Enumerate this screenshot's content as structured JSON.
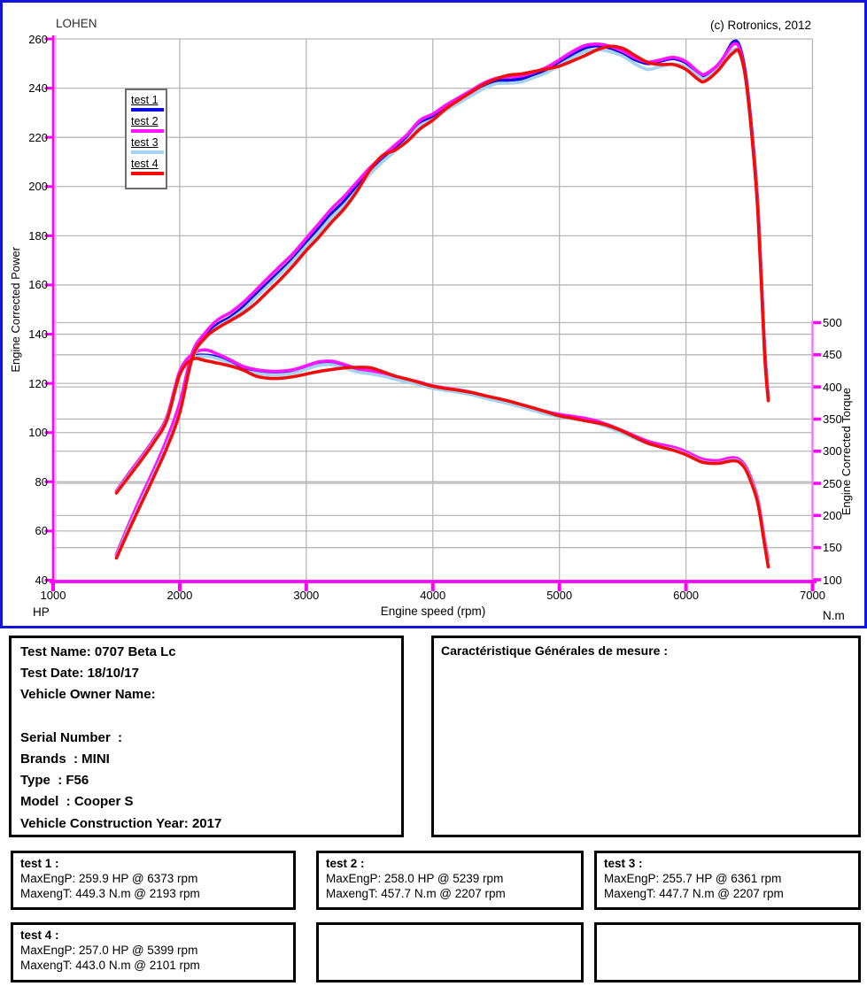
{
  "header": {
    "title": "LOHEN",
    "copyright": "(c) Rotronics, 2012"
  },
  "chart_data": {
    "type": "line",
    "x_label": "Engine speed (rpm)",
    "y_left_label": "Engine Corrected Power",
    "y_left_unit": "HP",
    "y_right_label": "Engine Corrected Torque",
    "y_right_unit": "N.m",
    "grid": true,
    "legend_position": "upper-left",
    "axes": {
      "x": {
        "min": 1000,
        "max": 7000,
        "step": 1000
      },
      "power": {
        "min": 40,
        "max": 260,
        "step": 20
      },
      "torque": {
        "min": 100,
        "max": 500,
        "step": 50
      }
    },
    "rpm": [
      1500,
      1600,
      1700,
      1800,
      1900,
      2000,
      2100,
      2200,
      2300,
      2400,
      2500,
      2600,
      2700,
      2800,
      2900,
      3000,
      3100,
      3200,
      3300,
      3400,
      3500,
      3600,
      3700,
      3800,
      3900,
      4000,
      4100,
      4200,
      4300,
      4400,
      4500,
      4600,
      4700,
      4800,
      4900,
      5000,
      5100,
      5200,
      5300,
      5400,
      5500,
      5600,
      5700,
      5800,
      5900,
      6000,
      6100,
      6150,
      6250,
      6320,
      6373,
      6420,
      6470,
      6520,
      6570,
      6620,
      6650
    ],
    "series": [
      {
        "name": "test 1",
        "color": "#0b0bdd",
        "max_power": "259.9 HP @ 6373 rpm",
        "max_torque": "449.3 N.m @ 2193 rpm",
        "power": [
          50,
          62,
          73,
          84,
          96,
          110,
          131,
          139,
          144,
          147,
          151,
          156,
          161,
          166,
          171,
          177,
          183,
          189,
          194,
          200,
          206,
          211,
          215.5,
          220,
          226,
          228.5,
          232,
          235,
          238,
          241,
          243,
          243.2,
          243.8,
          245.5,
          247.5,
          250.5,
          253.5,
          256.3,
          257.2,
          256.3,
          254.3,
          251.5,
          250,
          251,
          252,
          250.3,
          246,
          245.2,
          249,
          254.5,
          258.8,
          257.5,
          246,
          223,
          191,
          136,
          114.5
        ],
        "torque": [
          237,
          264,
          290,
          318,
          352,
          420,
          446,
          449.3,
          446,
          438,
          429,
          424,
          421.5,
          421.5,
          424,
          430,
          436,
          437,
          432,
          426,
          423,
          419.5,
          414.5,
          410,
          405.5,
          400,
          397,
          394,
          390.5,
          385.5,
          381,
          376.5,
          371,
          365.5,
          360,
          356,
          353,
          350,
          345.5,
          338.5,
          330.5,
          322,
          314,
          309,
          305,
          298,
          288.5,
          285.5,
          284,
          287,
          289,
          286.5,
          276,
          254,
          222,
          162,
          131
        ]
      },
      {
        "name": "test 2",
        "color": "#ff14ff",
        "max_power": "258.0 HP @ 5239 rpm",
        "max_torque": "457.7 N.m @ 2207 rpm",
        "power": [
          50.5,
          63,
          74.5,
          85.5,
          97.5,
          112,
          132.5,
          140.5,
          145.8,
          148.8,
          152.8,
          157.8,
          163,
          168,
          173,
          179,
          185,
          191,
          196,
          201.8,
          207.5,
          212.3,
          216.8,
          221.3,
          227,
          229.5,
          233,
          236,
          239,
          242,
          244,
          244.5,
          245,
          246.5,
          248.5,
          251.5,
          254.8,
          257.3,
          257.9,
          257,
          255,
          252.3,
          250.6,
          251.5,
          252.5,
          250.8,
          246.5,
          245.7,
          249.4,
          254.2,
          257.8,
          256.5,
          245,
          222,
          190,
          135,
          114
        ],
        "torque": [
          238,
          266,
          292,
          320,
          354,
          424,
          451,
          457.7,
          451,
          442,
          432,
          427,
          424.5,
          424.5,
          427,
          433,
          439,
          440,
          435,
          428.5,
          425,
          421,
          416,
          411.5,
          407,
          401.5,
          398.3,
          395.3,
          391.8,
          386.8,
          382.3,
          377.8,
          372.3,
          366.8,
          361.3,
          357.3,
          354.3,
          351.3,
          346.8,
          339.8,
          331.8,
          323.3,
          315.3,
          310.3,
          306.3,
          299.3,
          289.8,
          286.8,
          285.3,
          288.3,
          290,
          287.5,
          277,
          255,
          223,
          163,
          132
        ]
      },
      {
        "name": "test 3",
        "color": "#a4d2ef",
        "max_power": "255.7 HP @ 6361 rpm",
        "max_torque": "447.7 N.m @ 2207 rpm",
        "power": [
          49.5,
          61.5,
          72.5,
          83.5,
          95,
          108.5,
          130,
          138,
          143,
          146,
          149.8,
          154.8,
          159.8,
          164.8,
          170,
          175.8,
          181.5,
          187.5,
          192.5,
          198.5,
          204.8,
          210,
          214.3,
          219,
          224.8,
          227.3,
          230.8,
          233.8,
          236.8,
          239.8,
          241.8,
          242,
          242.5,
          244.3,
          246.3,
          249.3,
          252.3,
          254.8,
          255.6,
          254.8,
          253,
          249.8,
          247.6,
          248.8,
          249.8,
          248.6,
          244.8,
          244,
          247.6,
          252,
          255.7,
          254.5,
          244,
          221,
          189,
          134,
          113.5
        ],
        "torque": [
          236,
          262.5,
          288.5,
          316.5,
          350,
          418,
          444,
          447.7,
          444,
          435.5,
          425.5,
          421.5,
          419,
          419,
          421.5,
          427.5,
          433.5,
          434.5,
          429.5,
          423.5,
          420.5,
          417,
          412,
          407.5,
          403,
          397.5,
          394.5,
          391.5,
          388,
          383,
          378.5,
          374,
          368.5,
          363,
          357.5,
          353.5,
          350.5,
          347.5,
          343,
          336,
          328,
          319.5,
          311.5,
          306.5,
          302.5,
          295.5,
          286,
          283,
          281.5,
          284.5,
          286.5,
          284,
          273.5,
          251.5,
          219.5,
          159.5,
          128.5
        ]
      },
      {
        "name": "test 4",
        "color": "#f20d0d",
        "max_power": "257.0 HP @ 5399 rpm",
        "max_torque": "443.0 N.m @ 2101 rpm",
        "power": [
          49,
          60.5,
          71.5,
          82.5,
          94,
          108,
          130.5,
          138.5,
          142.5,
          145.5,
          148.5,
          152.5,
          157.5,
          162.5,
          168,
          174,
          179.5,
          185.5,
          191,
          198,
          206.5,
          212.5,
          214.8,
          218.5,
          223.5,
          227,
          231.5,
          235,
          238.3,
          241.5,
          243.8,
          245.3,
          245.8,
          246.8,
          247.8,
          249,
          251,
          253.2,
          255.6,
          257,
          256.2,
          253.2,
          250.4,
          249.6,
          249.6,
          247.6,
          243.4,
          242.8,
          247,
          251.5,
          254.3,
          254.9,
          244.5,
          221,
          188,
          133,
          113
        ],
        "torque": [
          235,
          261,
          287,
          315,
          349,
          419,
          443,
          441,
          437,
          432.5,
          426.5,
          417,
          413.5,
          413.5,
          416,
          420,
          424,
          427,
          429.5,
          430.5,
          430,
          424,
          417,
          412,
          406.5,
          401,
          397.5,
          395,
          391.5,
          387,
          382.5,
          378,
          372.5,
          367,
          361,
          355,
          351.5,
          347.5,
          344,
          338.9,
          331,
          321.5,
          312.5,
          306.5,
          301.5,
          294.5,
          285,
          282,
          281,
          283.5,
          285,
          283,
          272,
          249,
          217,
          156,
          120
        ]
      }
    ]
  },
  "info_box": {
    "lines": [
      "Test Name: 0707 Beta Lc",
      "Test Date: 18/10/17",
      "Vehicle Owner Name:",
      "",
      "Serial Number  :",
      "Brands  : MINI",
      "Type  : F56",
      "Model  : Cooper S",
      "Vehicle Construction Year: 2017"
    ]
  },
  "measure_box": {
    "title": "Caractéristique Générales de mesure :"
  },
  "test_boxes": [
    {
      "title": "test 1 :",
      "lines": [
        "MaxEngP: 259.9 HP @ 6373 rpm",
        "MaxengT: 449.3 N.m @ 2193 rpm"
      ]
    },
    {
      "title": "test 2 :",
      "lines": [
        "MaxEngP: 258.0 HP @ 5239 rpm",
        "MaxengT: 457.7 N.m @ 2207 rpm"
      ]
    },
    {
      "title": "test 3 :",
      "lines": [
        "MaxEngP: 255.7 HP @ 6361 rpm",
        "MaxengT: 447.7 N.m @ 2207 rpm"
      ]
    },
    {
      "title": "test 4 :",
      "lines": [
        "MaxEngP: 257.0 HP @ 5399 rpm",
        "MaxengT: 443.0 N.m @ 2101 rpm"
      ]
    },
    {
      "title": "",
      "lines": []
    },
    {
      "title": "",
      "lines": []
    }
  ],
  "colors": {
    "frame_border": "#1414e0",
    "axis_magenta": "#ff00ff",
    "axis_magenta_light": "#ffa0ff",
    "axis_right_violet": "#ee7bee",
    "grid": "#b7b7b7",
    "box_border": "#000000"
  }
}
